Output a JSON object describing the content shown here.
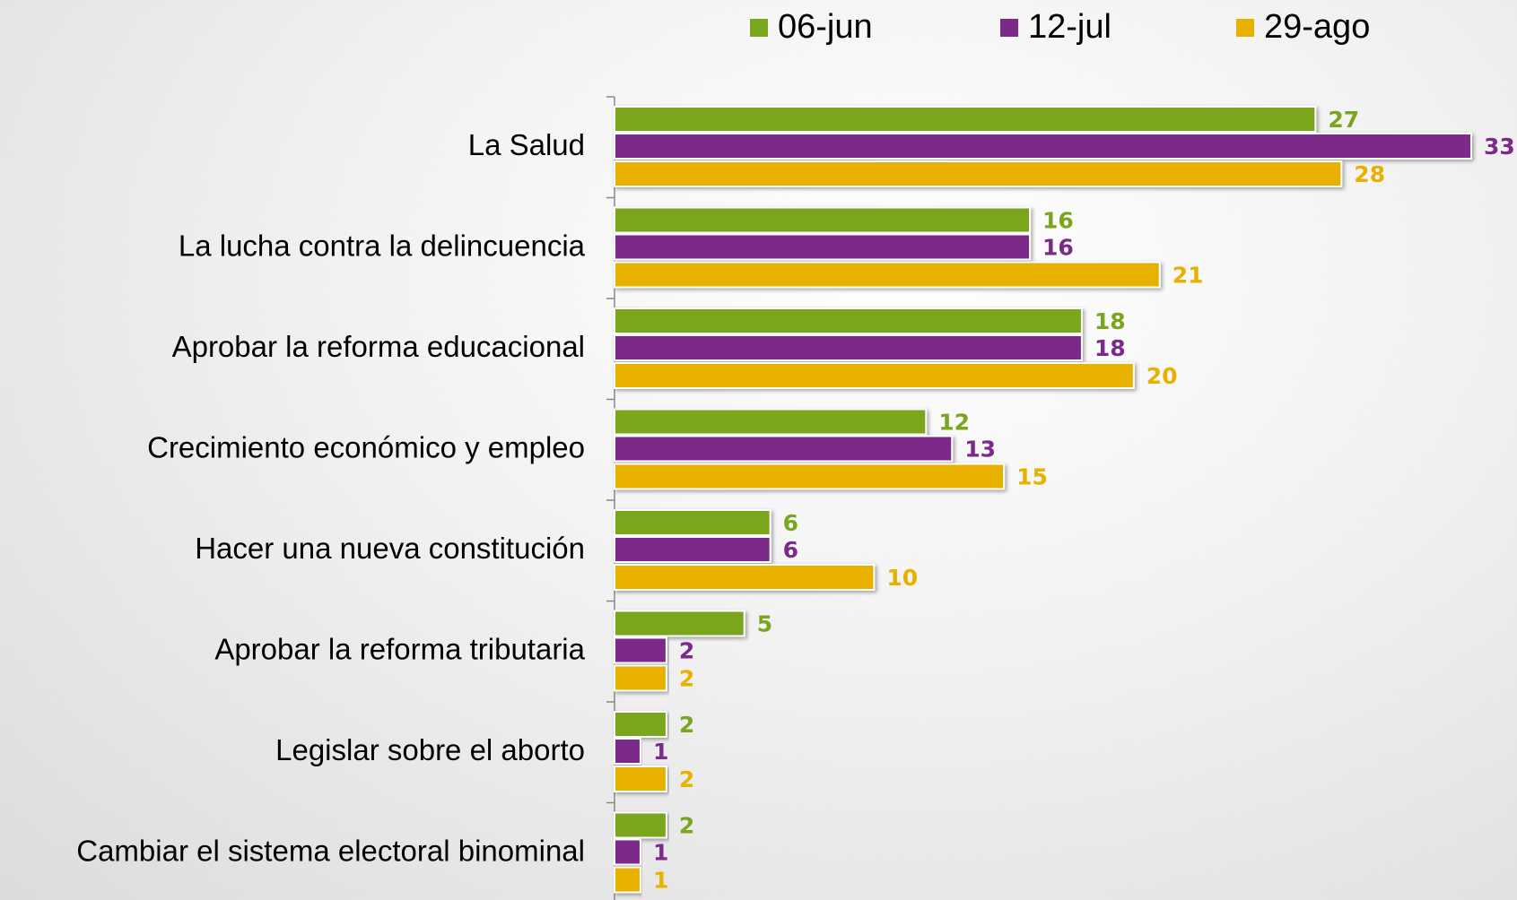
{
  "chart_data": {
    "type": "bar",
    "orientation": "horizontal",
    "categories": [
      "La Salud",
      "La lucha contra la delincuencia",
      "Aprobar la reforma educacional",
      "Crecimiento económico y empleo",
      "Hacer una nueva constitución",
      "Aprobar la reforma tributaria",
      "Legislar sobre el aborto",
      "Cambiar el sistema electoral binominal"
    ],
    "series": [
      {
        "name": "06-jun",
        "color": "#7aa51e",
        "values": [
          27,
          16,
          18,
          12,
          6,
          5,
          2,
          2
        ]
      },
      {
        "name": "12-jul",
        "color": "#7b2a8a",
        "values": [
          33,
          16,
          18,
          13,
          6,
          2,
          1,
          1
        ]
      },
      {
        "name": "29-ago",
        "color": "#e8b100",
        "values": [
          28,
          21,
          20,
          15,
          10,
          2,
          2,
          1
        ]
      }
    ],
    "legend": "top"
  }
}
